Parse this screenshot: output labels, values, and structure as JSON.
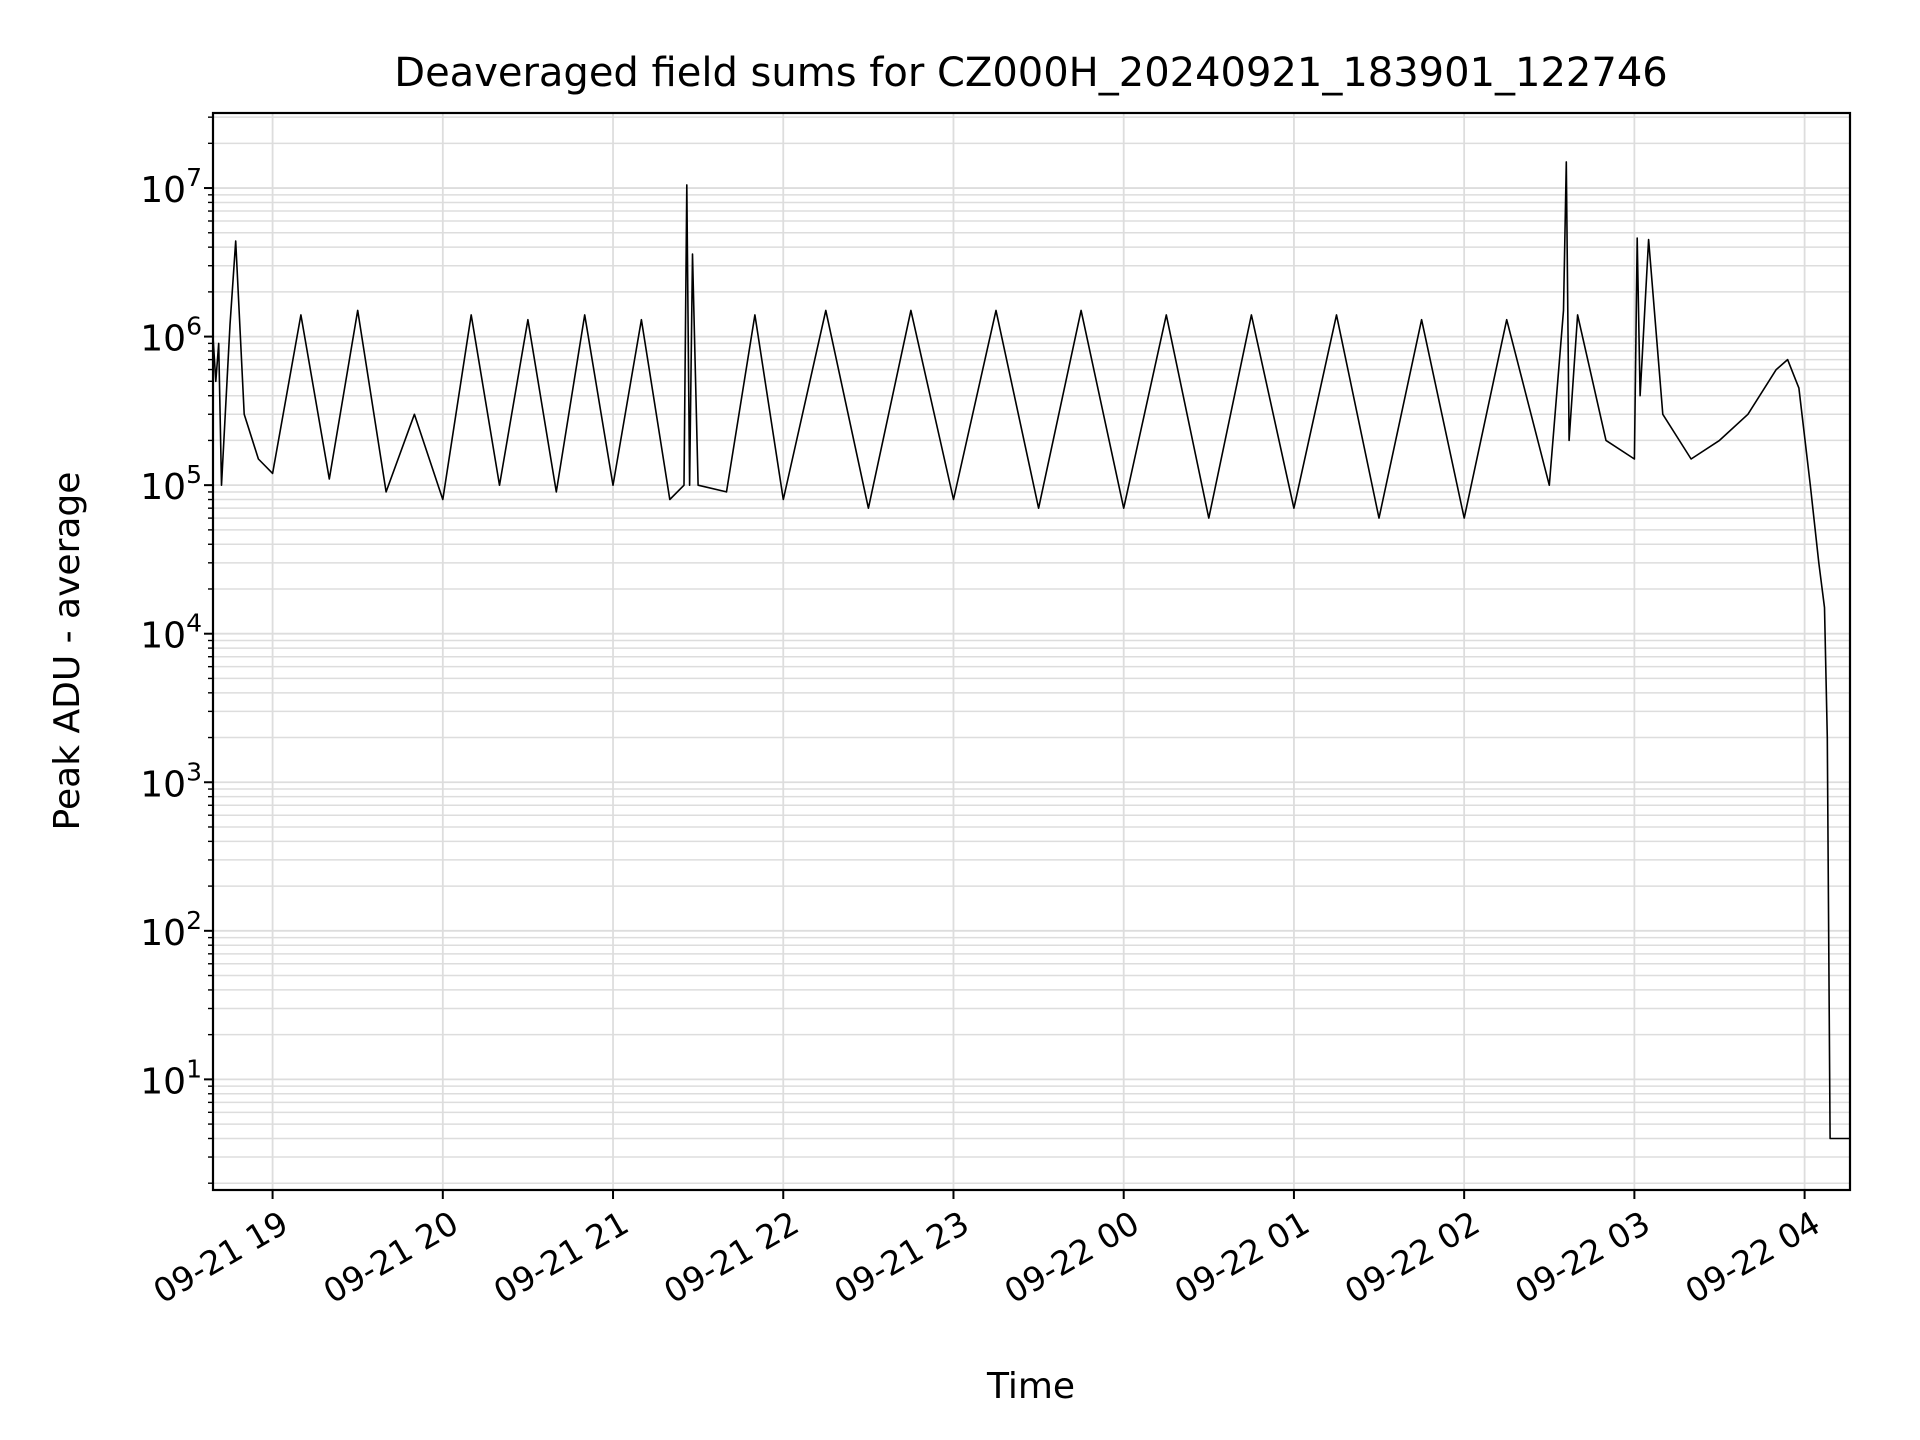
{
  "chart_data": {
    "type": "line",
    "title": "Deaveraged field sums for CZ000H_20240921_183901_122746",
    "xlabel": "Time",
    "ylabel": "Peak ADU - average",
    "yscale": "log",
    "ylim": [
      1.8,
      32000000
    ],
    "xlim": [
      "2024-09-21 18:39",
      "2024-09-22 04:16"
    ],
    "grid": true,
    "line_color": "#000000",
    "grid_color": "#dddddd",
    "x_ticks": [
      {
        "t": "2024-09-21 19:00",
        "label": "09-21 19"
      },
      {
        "t": "2024-09-21 20:00",
        "label": "09-21 20"
      },
      {
        "t": "2024-09-21 21:00",
        "label": "09-21 21"
      },
      {
        "t": "2024-09-21 22:00",
        "label": "09-21 22"
      },
      {
        "t": "2024-09-21 23:00",
        "label": "09-21 23"
      },
      {
        "t": "2024-09-22 00:00",
        "label": "09-22 00"
      },
      {
        "t": "2024-09-22 01:00",
        "label": "09-22 01"
      },
      {
        "t": "2024-09-22 02:00",
        "label": "09-22 02"
      },
      {
        "t": "2024-09-22 03:00",
        "label": "09-22 03"
      },
      {
        "t": "2024-09-22 04:00",
        "label": "09-22 04"
      }
    ],
    "y_ticks": [
      {
        "value": 10,
        "base": "10",
        "exp": "1"
      },
      {
        "value": 100,
        "base": "10",
        "exp": "2"
      },
      {
        "value": 1000,
        "base": "10",
        "exp": "3"
      },
      {
        "value": 10000,
        "base": "10",
        "exp": "4"
      },
      {
        "value": 100000,
        "base": "10",
        "exp": "5"
      },
      {
        "value": 1000000,
        "base": "10",
        "exp": "6"
      },
      {
        "value": 10000000,
        "base": "10",
        "exp": "7"
      }
    ],
    "series": [
      {
        "x": [
          "2024-09-21 18:39",
          "2024-09-21 18:40",
          "2024-09-21 18:41",
          "2024-09-21 18:42",
          "2024-09-21 18:45",
          "2024-09-21 18:47",
          "2024-09-21 18:50",
          "2024-09-21 18:55",
          "2024-09-21 19:00",
          "2024-09-21 19:10",
          "2024-09-21 19:20",
          "2024-09-21 19:30",
          "2024-09-21 19:40",
          "2024-09-21 19:50",
          "2024-09-21 20:00",
          "2024-09-21 20:10",
          "2024-09-21 20:20",
          "2024-09-21 20:30",
          "2024-09-21 20:40",
          "2024-09-21 20:50",
          "2024-09-21 21:00",
          "2024-09-21 21:10",
          "2024-09-21 21:20",
          "2024-09-21 21:25",
          "2024-09-21 21:26",
          "2024-09-21 21:27",
          "2024-09-21 21:28",
          "2024-09-21 21:30",
          "2024-09-21 21:40",
          "2024-09-21 21:50",
          "2024-09-21 22:00",
          "2024-09-21 22:15",
          "2024-09-21 22:30",
          "2024-09-21 22:45",
          "2024-09-21 23:00",
          "2024-09-21 23:15",
          "2024-09-21 23:30",
          "2024-09-21 23:45",
          "2024-09-22 00:00",
          "2024-09-22 00:15",
          "2024-09-22 00:30",
          "2024-09-22 00:45",
          "2024-09-22 01:00",
          "2024-09-22 01:15",
          "2024-09-22 01:30",
          "2024-09-22 01:45",
          "2024-09-22 02:00",
          "2024-09-22 02:15",
          "2024-09-22 02:30",
          "2024-09-22 02:35",
          "2024-09-22 02:36",
          "2024-09-22 02:37",
          "2024-09-22 02:40",
          "2024-09-22 02:50",
          "2024-09-22 03:00",
          "2024-09-22 03:01",
          "2024-09-22 03:02",
          "2024-09-22 03:05",
          "2024-09-22 03:10",
          "2024-09-22 03:20",
          "2024-09-22 03:30",
          "2024-09-22 03:40",
          "2024-09-22 03:50",
          "2024-09-22 03:54",
          "2024-09-22 03:58",
          "2024-09-22 04:02",
          "2024-09-22 04:05",
          "2024-09-22 04:07",
          "2024-09-22 04:08",
          "2024-09-22 04:09",
          "2024-09-22 04:10",
          "2024-09-22 04:16"
        ],
        "y": [
          1000000,
          500000,
          900000,
          100000,
          1200000,
          4400000,
          300000,
          150000,
          120000,
          1400000,
          110000,
          1500000,
          90000,
          300000,
          80000,
          1400000,
          100000,
          1300000,
          90000,
          1400000,
          100000,
          1300000,
          80000,
          100000,
          10500000,
          100000,
          3600000,
          100000,
          90000,
          1400000,
          80000,
          1500000,
          70000,
          1500000,
          80000,
          1500000,
          70000,
          1500000,
          70000,
          1400000,
          60000,
          1400000,
          70000,
          1400000,
          60000,
          1300000,
          60000,
          1300000,
          100000,
          1500000,
          15000000,
          200000,
          1400000,
          200000,
          150000,
          4600000,
          400000,
          4500000,
          300000,
          150000,
          200000,
          300000,
          600000,
          700000,
          450000,
          100000,
          30000,
          15000,
          2000,
          4,
          4,
          4
        ]
      }
    ]
  }
}
